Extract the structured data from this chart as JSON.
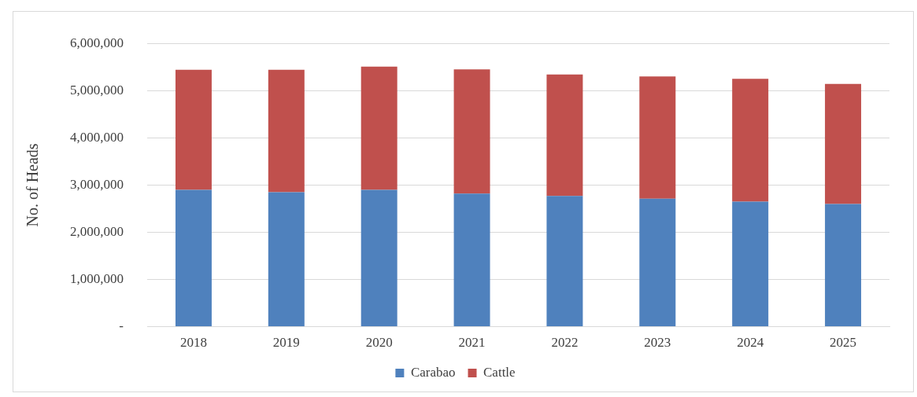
{
  "chart_data": {
    "type": "bar",
    "ylabel": "No. of Heads",
    "categories": [
      "2018",
      "2019",
      "2020",
      "2021",
      "2022",
      "2023",
      "2024",
      "2025"
    ],
    "stacked": true,
    "series": [
      {
        "name": "Carabao",
        "color": "#4f81bd",
        "values": [
          2900000,
          2850000,
          2900000,
          2820000,
          2770000,
          2710000,
          2650000,
          2600000
        ]
      },
      {
        "name": "Cattle",
        "color": "#c0504d",
        "values": [
          2540000,
          2590000,
          2610000,
          2630000,
          2570000,
          2590000,
          2600000,
          2540000
        ]
      }
    ],
    "ylim": [
      0,
      6000000
    ],
    "yticks": [
      {
        "value": 0,
        "label": "-"
      },
      {
        "value": 1000000,
        "label": "1,000,000"
      },
      {
        "value": 2000000,
        "label": "2,000,000"
      },
      {
        "value": 3000000,
        "label": "3,000,000"
      },
      {
        "value": 4000000,
        "label": "4,000,000"
      },
      {
        "value": 5000000,
        "label": "5,000,000"
      },
      {
        "value": 6000000,
        "label": "6,000,000"
      }
    ],
    "grid": "y",
    "legend": "bottom"
  }
}
